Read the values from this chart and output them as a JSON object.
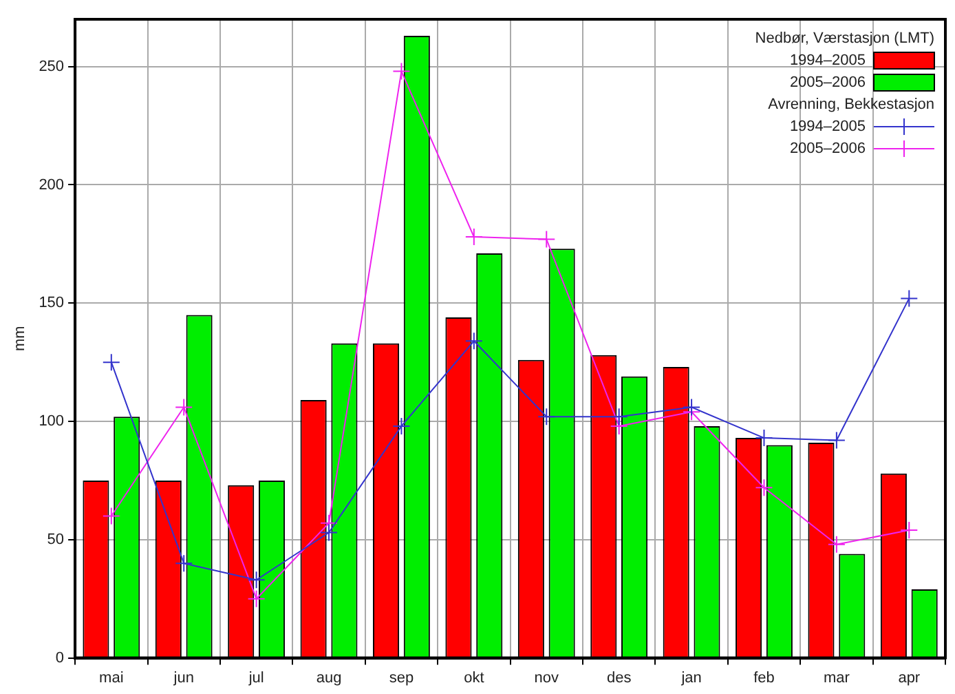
{
  "chart_data": {
    "type": "bar",
    "ylabel": "mm",
    "categories": [
      "mai",
      "jun",
      "jul",
      "aug",
      "sep",
      "okt",
      "nov",
      "des",
      "jan",
      "feb",
      "mar",
      "apr"
    ],
    "series": [
      {
        "name": "1994–2005",
        "color": "#ff0000",
        "values": [
          75,
          75,
          73,
          109,
          133,
          144,
          126,
          128,
          123,
          93,
          91,
          78
        ]
      },
      {
        "name": "2005–2006",
        "color": "#00ee00",
        "values": [
          102,
          145,
          75,
          133,
          263,
          171,
          173,
          119,
          98,
          90,
          44,
          29
        ]
      },
      {
        "name": "1994–2005",
        "type": "line",
        "marker": "cross",
        "color": "#3333cc",
        "values": [
          125,
          40,
          33,
          53,
          98,
          134,
          102,
          102,
          106,
          93,
          92,
          152
        ]
      },
      {
        "name": "2005–2006",
        "type": "line",
        "marker": "cross",
        "color": "#ee22ee",
        "values": [
          60,
          106,
          25,
          57,
          248,
          178,
          177,
          98,
          104,
          72,
          48,
          54
        ]
      }
    ],
    "annotations": [
      "Nedbør, Værstasjon (LMT)",
      "Avrenning, Bekkestasjon"
    ],
    "ylim": [
      0,
      270
    ],
    "yticks": [
      0,
      50,
      100,
      150,
      200,
      250
    ],
    "grid": true,
    "legend": "top right"
  }
}
